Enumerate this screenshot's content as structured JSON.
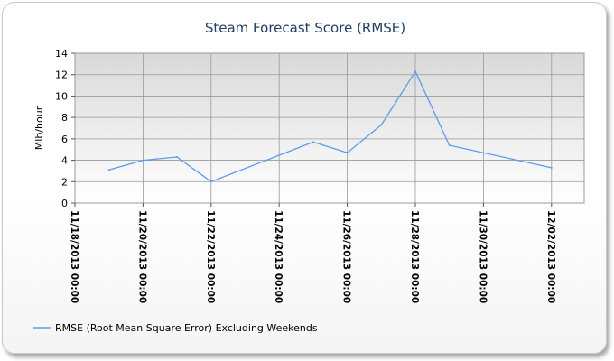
{
  "chart_data": {
    "type": "line",
    "title": "Steam Forecast Score (RMSE)",
    "xlabel": "",
    "ylabel": "Mlb/hour",
    "ylim": [
      0,
      14
    ],
    "yticks": [
      "0",
      "2",
      "4",
      "6",
      "8",
      "10",
      "12",
      "14"
    ],
    "x_ticks": [
      "11/18/2013 00:00",
      "11/20/2013 00:00",
      "11/22/2013 00:00",
      "11/24/2013 00:00",
      "11/26/2013 00:00",
      "11/28/2013 00:00",
      "11/30/2013 00:00",
      "12/02/2013 00:00"
    ],
    "grid": true,
    "legend_position": "bottom-left",
    "series": [
      {
        "name": "RMSE (Root Mean Square Error) Excluding Weekends",
        "color": "#5b9bf0",
        "points": [
          {
            "x": "11/19/2013 00:00",
            "y": 3.1
          },
          {
            "x": "11/20/2013 00:00",
            "y": 4.0
          },
          {
            "x": "11/21/2013 00:00",
            "y": 4.3
          },
          {
            "x": "11/22/2013 00:00",
            "y": 2.0
          },
          {
            "x": "11/25/2013 00:00",
            "y": 5.7
          },
          {
            "x": "11/26/2013 00:00",
            "y": 4.7
          },
          {
            "x": "11/27/2013 00:00",
            "y": 7.3
          },
          {
            "x": "11/28/2013 00:00",
            "y": 12.3
          },
          {
            "x": "11/29/2013 00:00",
            "y": 5.4
          },
          {
            "x": "12/02/2013 00:00",
            "y": 3.3
          }
        ]
      }
    ]
  }
}
